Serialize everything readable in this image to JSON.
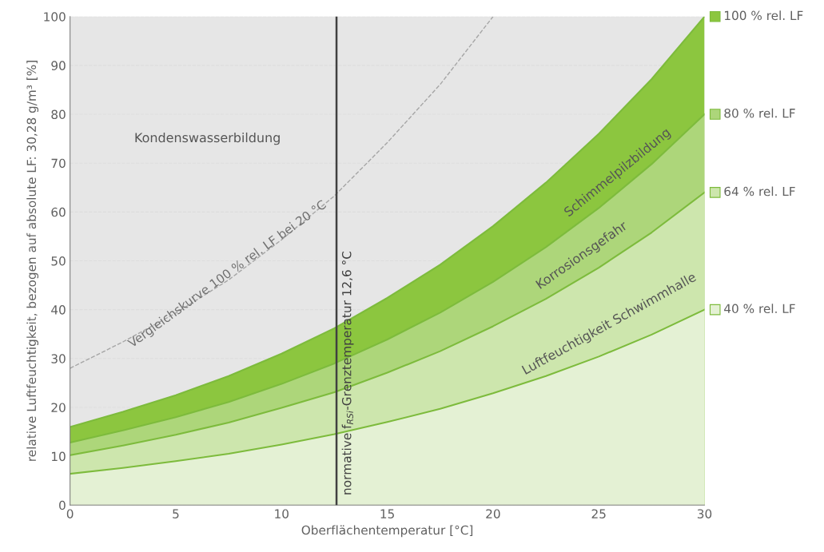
{
  "chart_data": {
    "type": "line",
    "xlabel": "Oberflächentemperatur [°C]",
    "ylabel": "relative Luftfeuchtigkeit, bezogen auf absolute LF: 30,28 g/m³ [%]",
    "x": [
      0,
      2.5,
      5,
      7.5,
      10,
      12.5,
      15,
      17.5,
      20,
      22.5,
      25,
      27.5,
      30
    ],
    "series": [
      {
        "name": "100 % rel. LF",
        "type": "area",
        "color": "#8cc63f",
        "values": [
          16.0,
          19.1,
          22.5,
          26.4,
          31.0,
          36.2,
          42.4,
          49.2,
          57.1,
          66.0,
          76.0,
          87.2,
          100
        ]
      },
      {
        "name": "80 % rel. LF",
        "type": "area",
        "color": "#add67a",
        "values": [
          12.8,
          15.3,
          18.0,
          21.1,
          24.8,
          29.0,
          33.9,
          39.4,
          45.7,
          52.8,
          60.8,
          69.8,
          80
        ]
      },
      {
        "name": "64 % rel. LF",
        "type": "area",
        "color": "#cde6ad",
        "values": [
          10.2,
          12.2,
          14.4,
          16.9,
          19.9,
          23.1,
          27.1,
          31.5,
          36.6,
          42.2,
          48.6,
          55.8,
          64
        ]
      },
      {
        "name": "40 % rel. LF",
        "type": "area",
        "color": "#e4f1d4",
        "values": [
          6.4,
          7.6,
          9.0,
          10.5,
          12.4,
          14.5,
          17.0,
          19.7,
          22.9,
          26.4,
          30.4,
          34.9,
          40
        ]
      },
      {
        "name": "Vergleichskurve 100 % rel. LF bei 20 °C",
        "color": "#a6a6a6",
        "line_style": "dashed",
        "x": [
          0,
          2.5,
          5,
          7.5,
          10,
          12.5,
          15,
          17.5,
          20
        ],
        "values": [
          28.0,
          33.4,
          39.3,
          46.1,
          54.3,
          63.3,
          74.2,
          86.1,
          100
        ]
      }
    ],
    "annotations": [
      "Kondenswasserbildung",
      "Schimmelpilzbildung",
      "Korrosionsgefahr",
      "Luftfeuchtigkeit Schwimmhalle"
    ],
    "ref_lines": [
      {
        "axis": "x",
        "value": 12.6,
        "label": "normative f$_{RSi}$-Grenztemperatur 12,6 °C",
        "color": "#404040"
      }
    ],
    "xlim": [
      0,
      30
    ],
    "ylim": [
      0,
      100
    ],
    "xticks": [
      0,
      5,
      10,
      15,
      20,
      25,
      30
    ],
    "yticks": [
      0,
      10,
      20,
      30,
      40,
      50,
      60,
      70,
      80,
      90,
      100
    ],
    "grid": "y",
    "legend": "right",
    "marker": "none",
    "line_style": "solid"
  }
}
